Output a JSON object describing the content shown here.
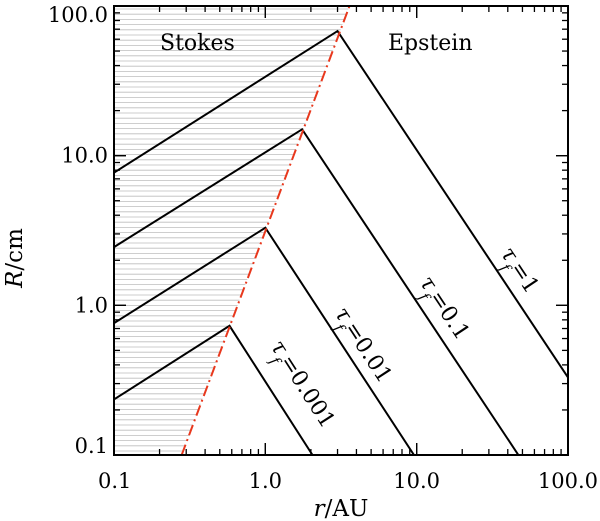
{
  "chart_data": {
    "type": "line",
    "xlabel_italic": "r",
    "xlabel_unit": "/AU",
    "ylabel_italic": "R",
    "ylabel_unit": "/cm",
    "xscale": "log",
    "yscale": "log",
    "xlim": [
      0.1,
      100.0
    ],
    "ylim": [
      0.1,
      100.0
    ],
    "xticks": [
      0.1,
      1.0,
      10.0,
      100.0
    ],
    "xtick_labels": [
      "0.1",
      "1.0",
      "10.0",
      "100.0"
    ],
    "yticks": [
      0.1,
      1.0,
      10.0,
      100.0
    ],
    "ytick_labels": [
      "0.1",
      "1.0",
      "10.0",
      "100.0"
    ],
    "region_labels": {
      "stokes": "Stokes",
      "epstein": "Epstein"
    },
    "boundary": {
      "color": "#e8381d",
      "style": "dash-dot",
      "points": [
        [
          0.28,
          0.1
        ],
        [
          3.6,
          100.0
        ]
      ]
    },
    "series": [
      {
        "tau_symbol": "τ",
        "tau_sub": "f",
        "tau_value": "=0.001",
        "points": [
          [
            0.1,
            0.235
          ],
          [
            0.58,
            0.73
          ],
          [
            2.05,
            0.1
          ]
        ]
      },
      {
        "tau_symbol": "τ",
        "tau_sub": "f",
        "tau_value": "=0.01",
        "points": [
          [
            0.1,
            0.76
          ],
          [
            1.0,
            3.3
          ],
          [
            9.6,
            0.1
          ]
        ]
      },
      {
        "tau_symbol": "τ",
        "tau_sub": "f",
        "tau_value": "=0.1",
        "points": [
          [
            0.1,
            2.45
          ],
          [
            1.75,
            15.0
          ],
          [
            47.0,
            0.1
          ]
        ]
      },
      {
        "tau_symbol": "τ",
        "tau_sub": "f",
        "tau_value": "=1",
        "points": [
          [
            0.1,
            7.7
          ],
          [
            3.0,
            68.0
          ],
          [
            100.0,
            0.33
          ]
        ]
      }
    ],
    "hatch_color": "#bdbdbd",
    "line_color": "#000000",
    "grid": false
  }
}
